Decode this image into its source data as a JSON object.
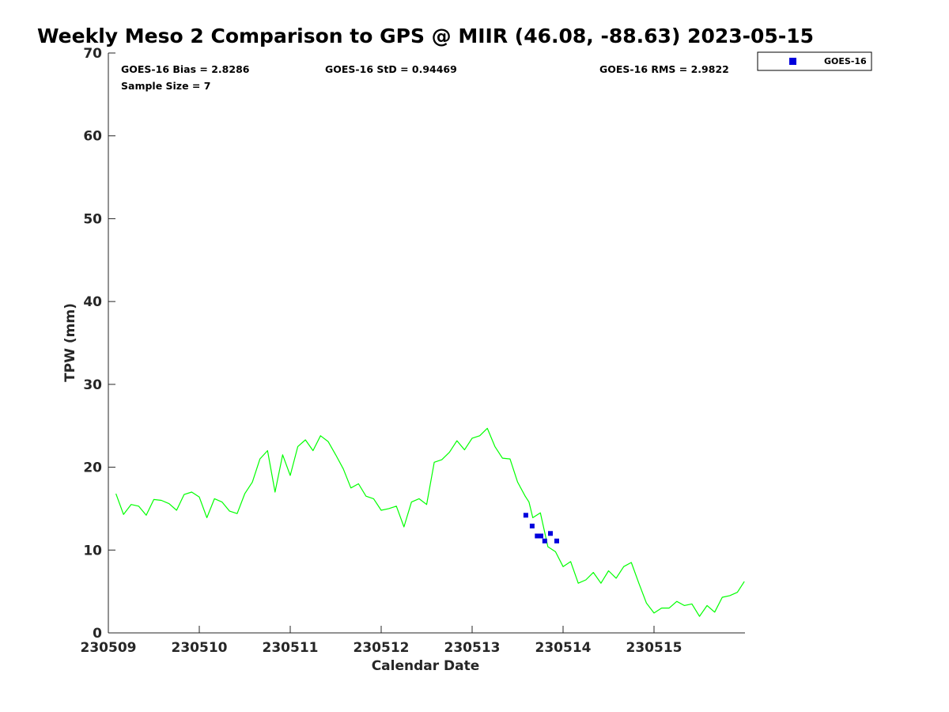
{
  "chart_data": {
    "type": "line",
    "title": "Weekly Meso 2 Comparison to GPS @ MIIR (46.08, -88.63) 2023-05-15",
    "xlabel": "Calendar Date",
    "ylabel": "TPW (mm)",
    "xlim": [
      "2023-05-09",
      "2023-05-16"
    ],
    "ylim": [
      0,
      70
    ],
    "x_ticks": [
      "230509",
      "230510",
      "230511",
      "230512",
      "230513",
      "230514",
      "230515"
    ],
    "y_ticks": [
      "0",
      "10",
      "20",
      "30",
      "40",
      "50",
      "60",
      "70"
    ],
    "grid": false,
    "legend_position": "top-right",
    "stats": {
      "bias": "GOES-16 Bias = 2.8286",
      "std": "GOES-16 StD = 0.94469",
      "rms": "GOES-16 RMS = 2.9822",
      "sample": "Sample Size = 7"
    },
    "series": [
      {
        "kind": "line",
        "color": "#00ff00",
        "x": [
          "2023-05-09 02:00",
          "2023-05-09 04:00",
          "2023-05-09 06:00",
          "2023-05-09 08:00",
          "2023-05-09 10:00",
          "2023-05-09 12:00",
          "2023-05-09 14:00",
          "2023-05-09 16:00",
          "2023-05-09 18:00",
          "2023-05-09 20:00",
          "2023-05-09 22:00",
          "2023-05-10 00:00",
          "2023-05-10 02:00",
          "2023-05-10 04:00",
          "2023-05-10 06:00",
          "2023-05-10 08:00",
          "2023-05-10 10:00",
          "2023-05-10 12:00",
          "2023-05-10 14:00",
          "2023-05-10 16:00",
          "2023-05-10 18:00",
          "2023-05-10 20:00",
          "2023-05-10 22:00",
          "2023-05-11 00:00",
          "2023-05-11 02:00",
          "2023-05-11 04:00",
          "2023-05-11 06:00",
          "2023-05-11 08:00",
          "2023-05-11 10:00",
          "2023-05-11 12:00",
          "2023-05-11 14:00",
          "2023-05-11 16:00",
          "2023-05-11 18:00",
          "2023-05-11 20:00",
          "2023-05-11 22:00",
          "2023-05-12 00:00",
          "2023-05-12 02:00",
          "2023-05-12 04:00",
          "2023-05-12 06:00",
          "2023-05-12 08:00",
          "2023-05-12 10:00",
          "2023-05-12 12:00",
          "2023-05-12 14:00",
          "2023-05-12 16:00",
          "2023-05-12 18:00",
          "2023-05-12 20:00",
          "2023-05-12 22:00",
          "2023-05-13 00:00",
          "2023-05-13 02:00",
          "2023-05-13 04:00",
          "2023-05-13 06:00",
          "2023-05-13 08:00",
          "2023-05-13 10:00",
          "2023-05-13 12:00",
          "2023-05-13 14:00",
          "2023-05-13 15:00",
          "2023-05-13 16:00",
          "2023-05-13 18:00",
          "2023-05-13 20:00",
          "2023-05-13 22:00",
          "2023-05-14 00:00",
          "2023-05-14 02:00",
          "2023-05-14 04:00",
          "2023-05-14 06:00",
          "2023-05-14 08:00",
          "2023-05-14 10:00",
          "2023-05-14 12:00",
          "2023-05-14 14:00",
          "2023-05-14 16:00",
          "2023-05-14 18:00",
          "2023-05-14 20:00",
          "2023-05-14 22:00",
          "2023-05-15 00:00",
          "2023-05-15 02:00",
          "2023-05-15 04:00",
          "2023-05-15 06:00",
          "2023-05-15 08:00",
          "2023-05-15 10:00",
          "2023-05-15 12:00",
          "2023-05-15 14:00",
          "2023-05-15 16:00",
          "2023-05-15 18:00",
          "2023-05-15 20:00",
          "2023-05-15 22:00",
          "2023-05-15 23:50"
        ],
        "y": [
          16.8,
          14.3,
          15.5,
          15.3,
          14.2,
          16.1,
          16.0,
          15.6,
          14.8,
          16.7,
          17.0,
          16.4,
          13.9,
          16.2,
          15.8,
          14.7,
          14.4,
          16.8,
          18.2,
          21.0,
          22.0,
          17.0,
          21.5,
          19.0,
          22.5,
          23.3,
          22.0,
          23.8,
          23.1,
          21.5,
          19.8,
          17.5,
          18.0,
          16.5,
          16.2,
          14.8,
          15.0,
          15.3,
          12.8,
          15.8,
          16.2,
          15.5,
          20.6,
          20.9,
          21.8,
          23.2,
          22.1,
          23.5,
          23.8,
          24.7,
          22.5,
          21.1,
          21.0,
          18.2,
          16.5,
          15.8,
          13.9,
          14.5,
          10.4,
          9.8,
          8.0,
          8.6,
          6.0,
          6.4,
          7.3,
          6.0,
          7.5,
          6.6,
          8.0,
          8.5,
          6.0,
          3.6,
          2.4,
          3.0,
          3.0,
          3.8,
          3.3,
          3.5,
          2.0,
          3.3,
          2.5,
          4.3,
          4.5,
          4.9,
          6.2
        ]
      },
      {
        "kind": "scatter",
        "name": "GOES-16",
        "color": "#0000dd",
        "x": [
          "2023-05-13 14:10",
          "2023-05-13 15:50",
          "2023-05-13 17:10",
          "2023-05-13 18:10",
          "2023-05-13 19:10",
          "2023-05-13 20:40",
          "2023-05-13 22:20"
        ],
        "y": [
          14.2,
          12.9,
          11.7,
          11.7,
          11.1,
          12.0,
          11.1
        ]
      }
    ]
  }
}
